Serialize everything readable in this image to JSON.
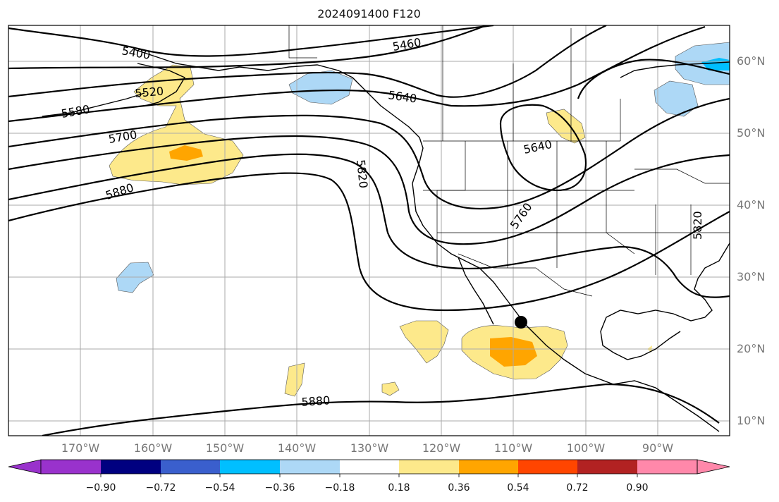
{
  "title": "2024091400 F120",
  "lat_labels": [
    "60°N",
    "50°N",
    "40°N",
    "30°N",
    "20°N",
    "10°N"
  ],
  "lon_labels": [
    "170°W",
    "160°W",
    "150°W",
    "140°W",
    "130°W",
    "120°W",
    "110°W",
    "100°W",
    "90°W"
  ],
  "contour_labels": [
    "5400",
    "5460",
    "5520",
    "5580",
    "5640",
    "5640",
    "5700",
    "5760",
    "5820",
    "5820",
    "5880",
    "5880"
  ],
  "colorbar": {
    "ticks": [
      "−0.90",
      "−0.72",
      "−0.54",
      "−0.36",
      "−0.18",
      "0.18",
      "0.36",
      "0.54",
      "0.72",
      "0.90"
    ],
    "colors": [
      "#9932cc",
      "#000080",
      "#3a5fcd",
      "#00bfff",
      "#add8f6",
      "#ffffff",
      "#fde98b",
      "#ffa500",
      "#ff4500",
      "#b22222",
      "#ff88aa"
    ]
  },
  "colors": {
    "positive_light": "#fde98b",
    "positive_mid": "#ffa500",
    "negative_light": "#add8f6",
    "negative_mid": "#00bfff",
    "grid": "#aaaaaa",
    "label": "#777777"
  },
  "map": {
    "lat_range": [
      8,
      65
    ],
    "lon_range": [
      -180,
      -80
    ],
    "marker": "black-dot"
  }
}
